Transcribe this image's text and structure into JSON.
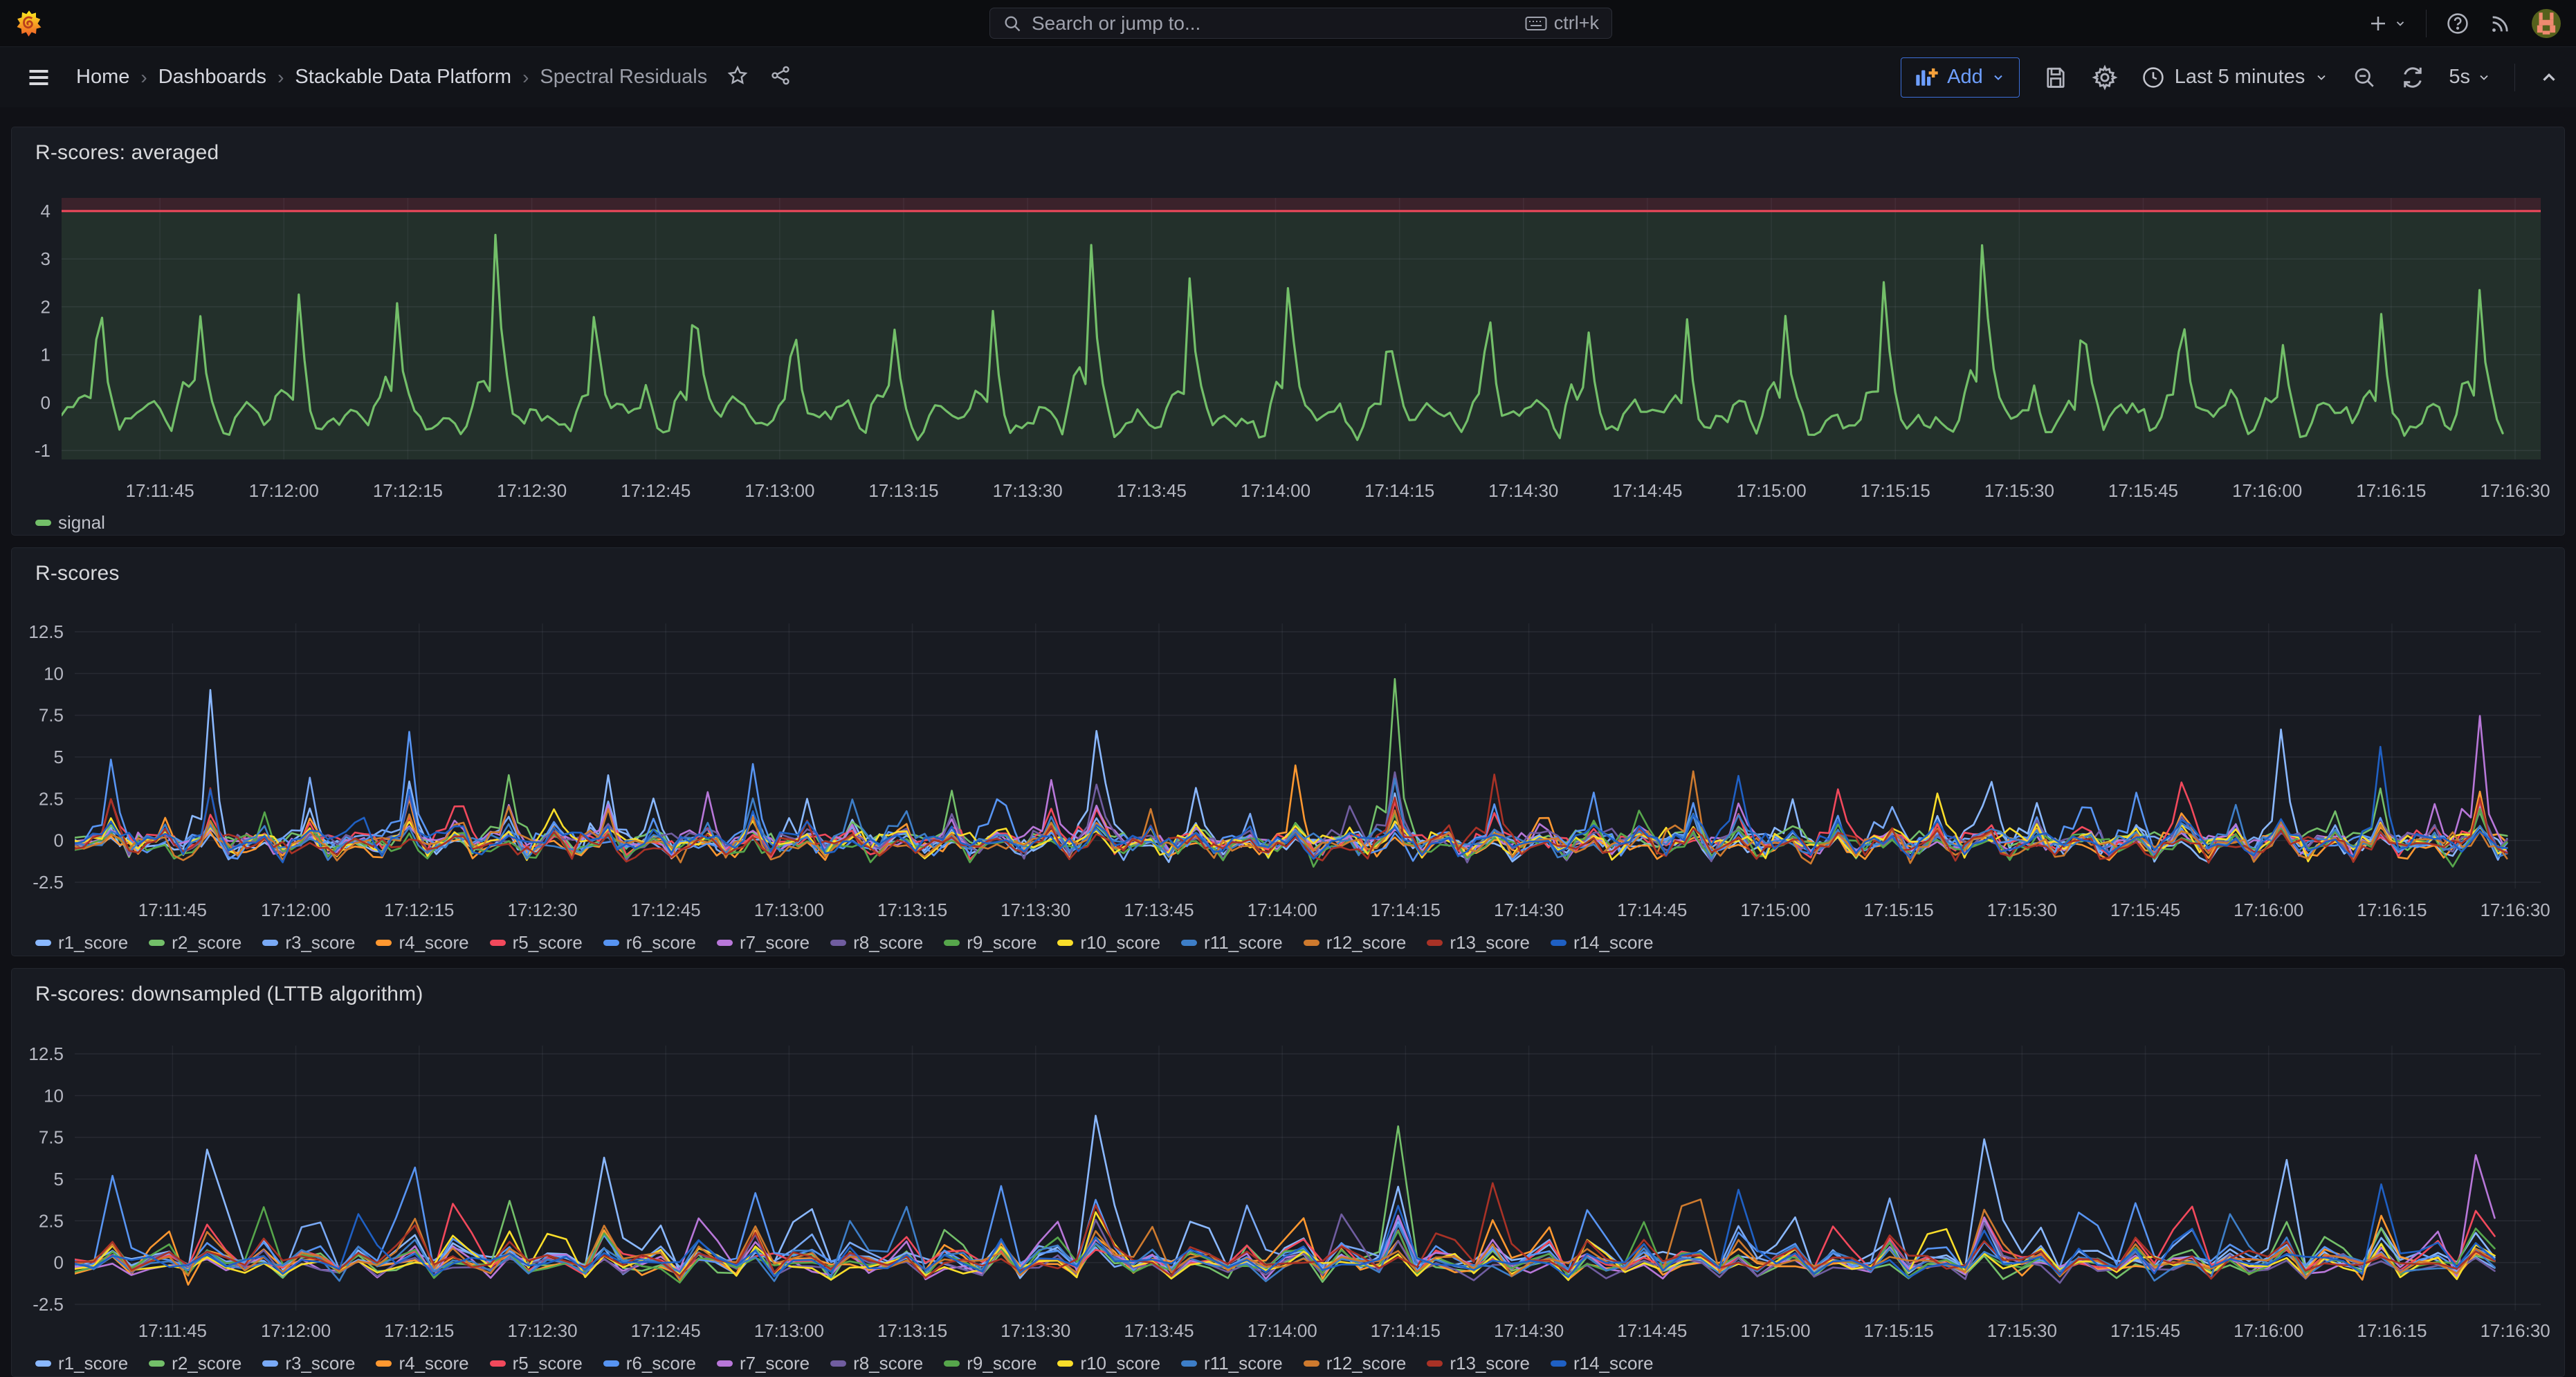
{
  "topnav": {
    "search_placeholder": "Search or jump to...",
    "search_shortcut": "ctrl+k"
  },
  "breadcrumb": {
    "items": [
      {
        "label": "Home",
        "current": false
      },
      {
        "label": "Dashboards",
        "current": false
      },
      {
        "label": "Stackable Data Platform",
        "current": false
      },
      {
        "label": "Spectral Residuals",
        "current": true
      }
    ]
  },
  "toolbar": {
    "add_label": "Add",
    "time_range": "Last 5 minutes",
    "refresh_interval": "5s"
  },
  "colors": {
    "accent_blue": "#6e9fff",
    "threshold_red": "#F2495C",
    "signal_green": "#73BF69",
    "panel_bg": "#181b22",
    "page_bg": "#101116"
  },
  "chart_data": [
    {
      "id": "averaged",
      "type": "line",
      "title": "R-scores: averaged",
      "x_ticks": [
        "17:11:45",
        "17:12:00",
        "17:12:15",
        "17:12:30",
        "17:12:45",
        "17:13:00",
        "17:13:15",
        "17:13:30",
        "17:13:45",
        "17:14:00",
        "17:14:15",
        "17:14:30",
        "17:14:45",
        "17:15:00",
        "17:15:15",
        "17:15:30",
        "17:15:45",
        "17:16:00",
        "17:16:15",
        "17:16:30"
      ],
      "x_range_seconds": 300,
      "y_ticks": [
        "4",
        "3",
        "2",
        "1",
        "0",
        "-1"
      ],
      "y_tick_values": [
        4,
        3,
        2,
        1,
        0,
        -1
      ],
      "ylim": [
        -1.2,
        4.3
      ],
      "grid": true,
      "legend_position": "bottom",
      "threshold": {
        "value": 4,
        "line_color": "#F2495C",
        "above_tint": "rgba(242,73,92,0.16)",
        "below_tint": "rgba(115,191,105,0.13)"
      },
      "series": [
        {
          "name": "signal",
          "color": "#73BF69"
        }
      ],
      "events": {
        "start": 4.5,
        "interval": 12,
        "heights": [
          3.25,
          3.05,
          2.95,
          2.45,
          3.35,
          2.2,
          2.9,
          2.5,
          2.6,
          2.5,
          3.8,
          2.5,
          2.95,
          2.2,
          3.0,
          2.7,
          2.4,
          2.3,
          2.4,
          3.9,
          2.3,
          3.0,
          2.2,
          2.6,
          2.8
        ],
        "minor": {
          "start": 10.5,
          "interval": 12,
          "heights": [
            0.8,
            0.9,
            0.7,
            1.0,
            0.8,
            0.7,
            0.9,
            0.6,
            0.8,
            1.0,
            0.7,
            0.8,
            0.9,
            0.6,
            0.8,
            0.7,
            1.0,
            0.7,
            0.8,
            0.6,
            0.9,
            0.8,
            0.7,
            0.8
          ]
        }
      },
      "baseline": {
        "offset": -0.25,
        "noise": 0.18,
        "valley": 0.5,
        "min": -0.82
      },
      "sample_step": 0.7,
      "shape": "sharp",
      "seed": 7,
      "line_width": 3.2
    },
    {
      "id": "rscores",
      "type": "line",
      "title": "R-scores",
      "x_ticks": [
        "17:11:45",
        "17:12:00",
        "17:12:15",
        "17:12:30",
        "17:12:45",
        "17:13:00",
        "17:13:15",
        "17:13:30",
        "17:13:45",
        "17:14:00",
        "17:14:15",
        "17:14:30",
        "17:14:45",
        "17:15:00",
        "17:15:15",
        "17:15:30",
        "17:15:45",
        "17:16:00",
        "17:16:15",
        "17:16:30"
      ],
      "x_range_seconds": 300,
      "y_ticks": [
        "12.5",
        "10",
        "7.5",
        "5",
        "2.5",
        "0",
        "-2.5"
      ],
      "y_tick_values": [
        12.5,
        10,
        7.5,
        5,
        2.5,
        0,
        -2.5
      ],
      "ylim": [
        -2.9,
        13.0
      ],
      "grid": true,
      "legend_position": "bottom",
      "series": [
        {
          "name": "r1_score",
          "color": "#8AB8FF"
        },
        {
          "name": "r2_score",
          "color": "#73BF69"
        },
        {
          "name": "r3_score",
          "color": "#79A9F5"
        },
        {
          "name": "r4_score",
          "color": "#FF9830"
        },
        {
          "name": "r5_score",
          "color": "#F2495C"
        },
        {
          "name": "r6_score",
          "color": "#5794F2"
        },
        {
          "name": "r7_score",
          "color": "#B877D9"
        },
        {
          "name": "r8_score",
          "color": "#705DA0"
        },
        {
          "name": "r9_score",
          "color": "#56A64B"
        },
        {
          "name": "r10_score",
          "color": "#FADE2A"
        },
        {
          "name": "r11_score",
          "color": "#3D7EC8"
        },
        {
          "name": "r12_score",
          "color": "#CE7A2E"
        },
        {
          "name": "r13_score",
          "color": "#A93226"
        },
        {
          "name": "r14_score",
          "color": "#1F60C4"
        }
      ],
      "events": {
        "start": 4.5,
        "interval": 12,
        "heights": [
          5.6,
          8.7,
          4.2,
          8.0,
          5.0,
          6.5,
          4.5,
          5.6,
          4.6,
          5.0,
          10.0,
          4.0,
          4.6,
          10.4,
          5.0,
          4.2,
          6.8,
          4.0,
          4.5,
          8.0,
          4.8,
          5.5,
          7.8,
          5.3,
          8.2
        ],
        "leads": [
          5,
          0,
          2,
          5,
          1,
          0,
          6,
          0,
          10,
          5,
          0,
          0,
          3,
          1,
          12,
          5,
          11,
          0,
          2,
          0,
          5,
          4,
          0,
          13,
          6
        ],
        "minor": {
          "start": 10.5,
          "interval": 12,
          "heights": [
            3.2,
            4.1,
            2.9,
            4.8,
            3.4,
            3.0,
            4.4,
            2.8,
            3.6,
            4.6,
            3.1,
            3.3,
            4.2,
            2.9,
            3.8,
            3.2,
            4.5,
            3.0,
            3.5,
            2.9,
            4.0,
            3.4,
            3.1,
            3.7
          ]
        }
      },
      "baseline": {
        "offset": -0.15,
        "noise": 0.33,
        "valley": 0.55,
        "min": -2.0,
        "cluster": 1.4
      },
      "sample_step": 1.1,
      "shape": "sharp",
      "seed": 11,
      "line_width": 2.6
    },
    {
      "id": "lttb",
      "type": "line",
      "title": "R-scores: downsampled (LTTB algorithm)",
      "x_ticks": [
        "17:11:45",
        "17:12:00",
        "17:12:15",
        "17:12:30",
        "17:12:45",
        "17:13:00",
        "17:13:15",
        "17:13:30",
        "17:13:45",
        "17:14:00",
        "17:14:15",
        "17:14:30",
        "17:14:45",
        "17:15:00",
        "17:15:15",
        "17:15:30",
        "17:15:45",
        "17:16:00",
        "17:16:15",
        "17:16:30"
      ],
      "x_range_seconds": 300,
      "y_ticks": [
        "12.5",
        "10",
        "7.5",
        "5",
        "2.5",
        "0",
        "-2.5"
      ],
      "y_tick_values": [
        12.5,
        10,
        7.5,
        5,
        2.5,
        0,
        -2.5
      ],
      "ylim": [
        -2.9,
        13.0
      ],
      "grid": true,
      "legend_position": "bottom",
      "series": [
        {
          "name": "r1_score",
          "color": "#8AB8FF"
        },
        {
          "name": "r2_score",
          "color": "#73BF69"
        },
        {
          "name": "r3_score",
          "color": "#79A9F5"
        },
        {
          "name": "r4_score",
          "color": "#FF9830"
        },
        {
          "name": "r5_score",
          "color": "#F2495C"
        },
        {
          "name": "r6_score",
          "color": "#5794F2"
        },
        {
          "name": "r7_score",
          "color": "#B877D9"
        },
        {
          "name": "r8_score",
          "color": "#705DA0"
        },
        {
          "name": "r9_score",
          "color": "#56A64B"
        },
        {
          "name": "r10_score",
          "color": "#FADE2A"
        },
        {
          "name": "r11_score",
          "color": "#3D7EC8"
        },
        {
          "name": "r12_score",
          "color": "#CE7A2E"
        },
        {
          "name": "r13_score",
          "color": "#A93226"
        },
        {
          "name": "r14_score",
          "color": "#1F60C4"
        }
      ],
      "events_from": 1,
      "baseline": {
        "offset": -0.15,
        "noise": 0.4,
        "valley": 0.5,
        "min": -2.0,
        "cluster": 0.8
      },
      "sample_step": 2.3,
      "shape": "tri",
      "seed": 23,
      "line_width": 2.6
    }
  ]
}
